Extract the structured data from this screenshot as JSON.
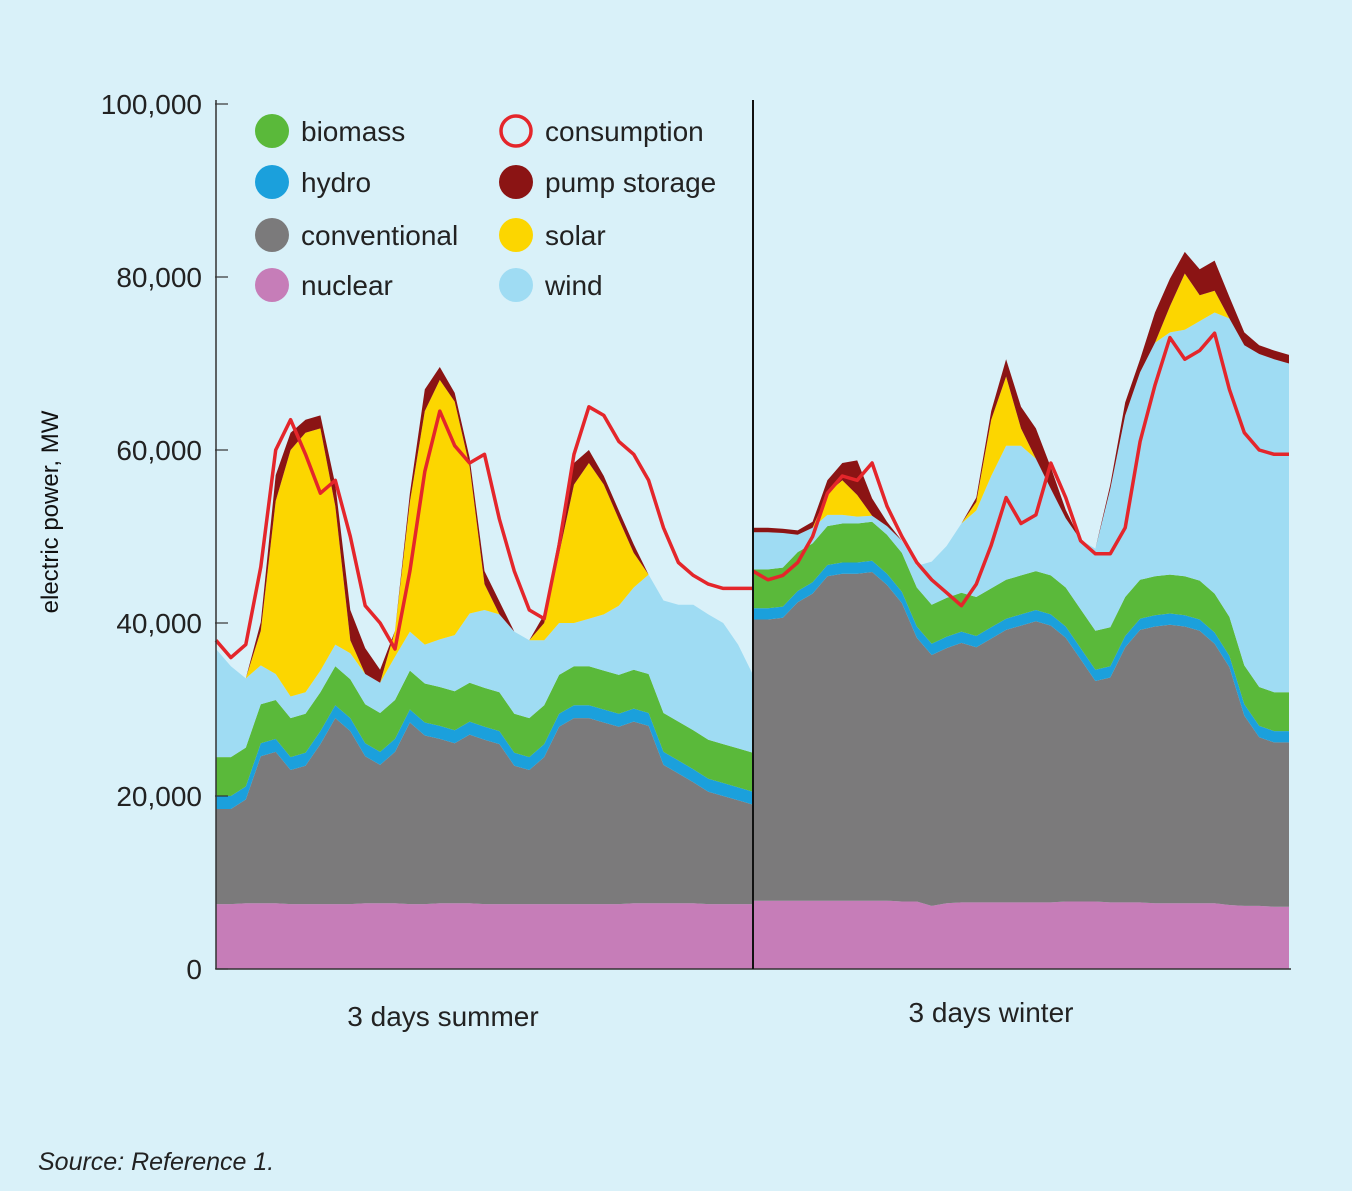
{
  "source": "Source: Reference 1.",
  "colors": {
    "nuclear": "#c67db8",
    "conventional": "#7b7a7b",
    "hydro": "#1ba0dc",
    "biomass": "#5ab93a",
    "wind": "#9fdcf3",
    "solar": "#fcd600",
    "pump storage": "#8b1414",
    "consumption": "#e4262b",
    "background": "#d9f1f9"
  },
  "legend": [
    {
      "key": "biomass",
      "label": "biomass",
      "icon": "filled-circle"
    },
    {
      "key": "hydro",
      "label": "hydro",
      "icon": "filled-circle"
    },
    {
      "key": "conventional",
      "label": "conventional",
      "icon": "filled-circle"
    },
    {
      "key": "nuclear",
      "label": "nuclear",
      "icon": "filled-circle"
    },
    {
      "key": "consumption",
      "label": "consumption",
      "icon": "hollow-circle"
    },
    {
      "key": "pump storage",
      "label": "pump storage",
      "icon": "filled-circle"
    },
    {
      "key": "solar",
      "label": "solar",
      "icon": "filled-circle"
    },
    {
      "key": "wind",
      "label": "wind",
      "icon": "filled-circle"
    }
  ],
  "chart_data": {
    "type": "area",
    "stacked": true,
    "ylabel": "electric power, MW",
    "ylim": [
      0,
      100000
    ],
    "yticks": [
      0,
      20000,
      40000,
      60000,
      80000,
      100000
    ],
    "ytick_labels": [
      "0",
      "20,000",
      "40,000",
      "60,000",
      "80,000",
      "100,000"
    ],
    "panels": [
      "3 days summer",
      "3 days winter"
    ],
    "time_points_per_panel": 37,
    "stack_order": [
      "nuclear",
      "conventional",
      "hydro",
      "biomass",
      "wind",
      "solar",
      "pump storage"
    ],
    "series": [
      {
        "name": "nuclear",
        "summer": [
          7500,
          7500,
          7600,
          7600,
          7600,
          7500,
          7500,
          7500,
          7500,
          7500,
          7600,
          7600,
          7600,
          7500,
          7500,
          7600,
          7600,
          7600,
          7500,
          7500,
          7500,
          7500,
          7500,
          7500,
          7500,
          7500,
          7500,
          7500,
          7600,
          7600,
          7600,
          7600,
          7600,
          7500,
          7500,
          7500,
          7500
        ],
        "winter": [
          7900,
          7900,
          7900,
          7900,
          7900,
          7900,
          7900,
          7900,
          7900,
          7900,
          7800,
          7800,
          7300,
          7600,
          7700,
          7700,
          7700,
          7700,
          7700,
          7700,
          7700,
          7800,
          7800,
          7800,
          7700,
          7700,
          7700,
          7600,
          7600,
          7600,
          7600,
          7600,
          7400,
          7300,
          7300,
          7200,
          7200
        ]
      },
      {
        "name": "conventional",
        "summer": [
          11000,
          11000,
          12000,
          17000,
          17500,
          15500,
          16000,
          18500,
          21500,
          20000,
          17000,
          16000,
          17500,
          21000,
          19500,
          19000,
          18500,
          19500,
          19000,
          18500,
          16000,
          15500,
          17000,
          20500,
          21500,
          21500,
          21000,
          20500,
          21000,
          20500,
          16000,
          15000,
          14000,
          13000,
          12500,
          12000,
          11500
        ],
        "winter": [
          32500,
          32500,
          32700,
          34500,
          35500,
          37500,
          37800,
          37800,
          38000,
          36500,
          34500,
          30500,
          29000,
          29500,
          30000,
          29500,
          30500,
          31500,
          32000,
          32500,
          32000,
          30500,
          28000,
          25500,
          26000,
          29500,
          31500,
          32000,
          32200,
          32000,
          31500,
          30000,
          27500,
          22000,
          19500,
          19000,
          19000
        ]
      },
      {
        "name": "hydro",
        "summer": [
          1500,
          1500,
          1500,
          1500,
          1500,
          1500,
          1500,
          1500,
          1500,
          1500,
          1500,
          1500,
          1500,
          1500,
          1500,
          1500,
          1500,
          1500,
          1500,
          1500,
          1500,
          1500,
          1500,
          1500,
          1500,
          1500,
          1500,
          1500,
          1500,
          1500,
          1500,
          1500,
          1500,
          1500,
          1500,
          1500,
          1500
        ],
        "winter": [
          1300,
          1300,
          1300,
          1300,
          1300,
          1300,
          1300,
          1300,
          1300,
          1300,
          1300,
          1300,
          1300,
          1300,
          1300,
          1300,
          1300,
          1300,
          1300,
          1300,
          1300,
          1300,
          1300,
          1300,
          1300,
          1300,
          1300,
          1300,
          1300,
          1300,
          1300,
          1300,
          1300,
          1300,
          1300,
          1300,
          1300
        ]
      },
      {
        "name": "biomass",
        "summer": [
          4500,
          4500,
          4500,
          4500,
          4500,
          4500,
          4500,
          4500,
          4500,
          4500,
          4500,
          4500,
          4500,
          4500,
          4500,
          4500,
          4500,
          4500,
          4500,
          4500,
          4500,
          4500,
          4500,
          4500,
          4500,
          4500,
          4500,
          4500,
          4500,
          4500,
          4500,
          4500,
          4500,
          4500,
          4500,
          4500,
          4500
        ],
        "winter": [
          4500,
          4500,
          4500,
          4500,
          4500,
          4500,
          4500,
          4500,
          4500,
          4500,
          4500,
          4500,
          4500,
          4500,
          4500,
          4500,
          4500,
          4500,
          4500,
          4500,
          4500,
          4500,
          4500,
          4500,
          4500,
          4500,
          4500,
          4500,
          4500,
          4500,
          4500,
          4500,
          4500,
          4500,
          4500,
          4500,
          4500
        ]
      },
      {
        "name": "wind",
        "summer": [
          12500,
          10500,
          8000,
          4500,
          3000,
          2500,
          2500,
          2500,
          2500,
          3000,
          3500,
          3500,
          5000,
          4500,
          4500,
          5500,
          6500,
          8000,
          9000,
          9000,
          9500,
          9000,
          7500,
          6000,
          5000,
          5500,
          6500,
          8000,
          9500,
          11500,
          13000,
          13500,
          14500,
          14500,
          14000,
          12000,
          9000
        ],
        "winter": [
          4300,
          4300,
          4000,
          2000,
          1800,
          1300,
          1000,
          800,
          700,
          1000,
          1400,
          2500,
          5000,
          6000,
          8000,
          10000,
          13000,
          15500,
          15000,
          13000,
          10000,
          8000,
          8000,
          9500,
          16000,
          21000,
          24000,
          27000,
          28000,
          28500,
          30000,
          32500,
          34500,
          37000,
          38500,
          38500,
          38000
        ]
      },
      {
        "name": "solar",
        "summer": [
          0,
          0,
          0,
          4000,
          20000,
          28500,
          30000,
          28000,
          16000,
          1500,
          0,
          0,
          3000,
          15000,
          27000,
          30000,
          27000,
          17000,
          3000,
          0,
          0,
          0,
          2000,
          8000,
          16000,
          18000,
          15000,
          10000,
          4000,
          0,
          0,
          0,
          0,
          0,
          0,
          0,
          0
        ],
        "winter": [
          0,
          0,
          0,
          0,
          0,
          2500,
          4000,
          2500,
          0,
          0,
          0,
          0,
          0,
          0,
          0,
          1000,
          6500,
          8000,
          2000,
          0,
          0,
          0,
          0,
          0,
          0,
          0,
          0,
          0,
          3000,
          6500,
          3000,
          2500,
          0,
          0,
          0,
          0,
          0
        ]
      },
      {
        "name": "pump storage",
        "summer": [
          0,
          0,
          0,
          1000,
          3000,
          2000,
          1500,
          1500,
          2500,
          3500,
          3000,
          1500,
          0,
          1000,
          2500,
          1500,
          1000,
          1000,
          1500,
          1500,
          0,
          0,
          1000,
          2000,
          2500,
          1500,
          1000,
          1000,
          1000,
          0,
          0,
          0,
          0,
          0,
          0,
          0,
          0
        ],
        "winter": [
          500,
          500,
          500,
          500,
          700,
          1500,
          2000,
          4000,
          2000,
          500,
          0,
          0,
          0,
          0,
          0,
          500,
          1000,
          2000,
          2500,
          3500,
          2500,
          1000,
          0,
          0,
          500,
          1500,
          1500,
          3500,
          3200,
          2500,
          3000,
          3500,
          2500,
          1500,
          1000,
          1000,
          1000
        ]
      },
      {
        "name": "consumption",
        "summer": [
          38000,
          36000,
          37500,
          46500,
          60000,
          63500,
          59500,
          55000,
          56500,
          50000,
          42000,
          40000,
          37000,
          46000,
          57500,
          64500,
          60500,
          58500,
          59500,
          52000,
          46000,
          41500,
          40500,
          49000,
          59500,
          65000,
          64000,
          61000,
          59500,
          56500,
          51000,
          47000,
          45500,
          44500,
          44000,
          44000,
          44000
        ],
        "winter": [
          46000,
          45000,
          45500,
          47000,
          50000,
          55000,
          57000,
          56500,
          58500,
          53500,
          50000,
          47000,
          45000,
          43500,
          42000,
          44500,
          49000,
          54500,
          51500,
          52500,
          58500,
          54500,
          49500,
          48000,
          48000,
          51000,
          61000,
          67500,
          73000,
          70500,
          71500,
          73500,
          67000,
          62000,
          60000,
          59500,
          59500
        ]
      }
    ]
  }
}
